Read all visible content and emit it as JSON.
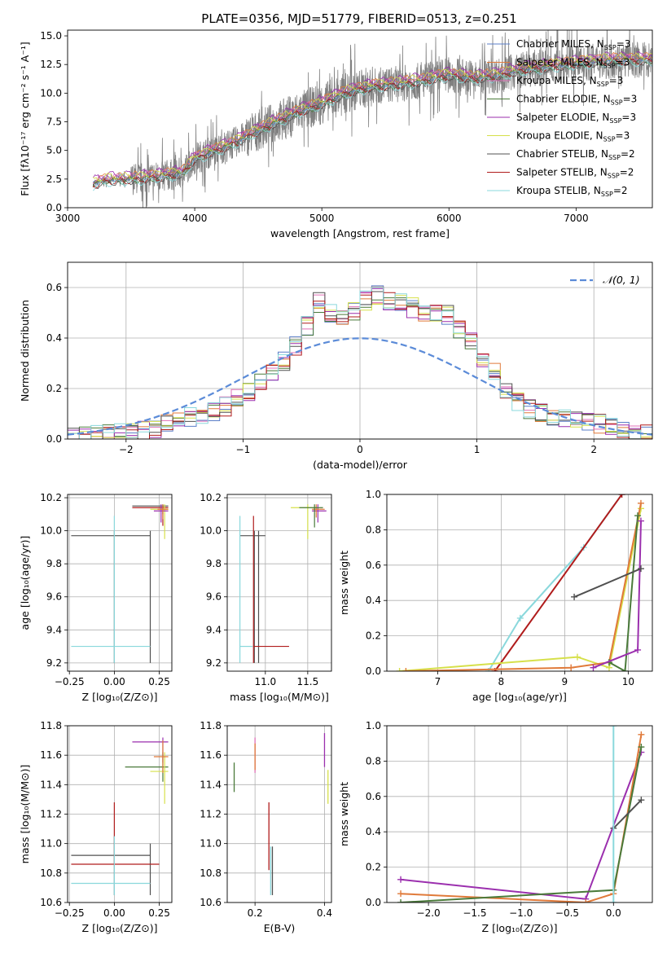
{
  "title": "PLATE=0356, MJD=51779, FIBERID=0513, z=0.251",
  "chart_data": [
    {
      "id": "spectrum",
      "type": "line",
      "xlabel": "wavelength [Angstrom, rest frame]",
      "ylabel": "Flux [fλ10⁻¹⁷ erg cm⁻² s⁻¹ A⁻¹]",
      "xlim": [
        3000,
        7600
      ],
      "ylim": [
        0,
        15.5
      ],
      "xticks": [
        3000,
        4000,
        5000,
        6000,
        7000
      ],
      "yticks": [
        0.0,
        2.5,
        5.0,
        7.5,
        10.0,
        12.5,
        15.0
      ],
      "xtick_labels": [
        "3000",
        "4000",
        "5000",
        "6000",
        "7000"
      ],
      "ytick_labels": [
        "0.0",
        "2.5",
        "5.0",
        "7.5",
        "10.0",
        "12.5",
        "15.0"
      ],
      "grid": false,
      "legend_position": "right",
      "data_color": "#808080",
      "data_wavelength_start": 3200,
      "continuum_x": [
        3200,
        3300,
        3500,
        3700,
        3900,
        4000,
        4300,
        4600,
        4800,
        5000,
        5200,
        5400,
        5600,
        5800,
        6000,
        6200,
        6400,
        6600,
        7000,
        7300
      ],
      "continuum_y": [
        2.1,
        2.4,
        2.5,
        2.7,
        3.0,
        4.3,
        5.6,
        7.3,
        8.3,
        9.1,
        10.1,
        10.6,
        10.8,
        11.1,
        11.6,
        11.3,
        11.6,
        12.1,
        12.6,
        12.9
      ],
      "series": [
        {
          "name": "Chabrier MILES, N_SSP=3",
          "label_main": "Chabrier MILES, N",
          "label_sub": "SSP",
          "label_end": "=3",
          "color": "#5b7fc8",
          "offset": 0.15
        },
        {
          "name": "Salpeter MILES, N_SSP=3",
          "label_main": "Salpeter MILES, N",
          "label_sub": "SSP",
          "label_end": "=3",
          "color": "#e07a3a",
          "offset": 0.35
        },
        {
          "name": "Kroupa MILES, N_SSP=3",
          "label_main": "Kroupa MILES, N",
          "label_sub": "SSP",
          "label_end": "=3",
          "color": "#e070b8",
          "offset": 0.25
        },
        {
          "name": "Chabrier ELODIE, N_SSP=3",
          "label_main": "Chabrier ELODIE, N",
          "label_sub": "SSP",
          "label_end": "=3",
          "color": "#4a7a3a",
          "offset": -0.1
        },
        {
          "name": "Salpeter ELODIE, N_SSP=3",
          "label_main": "Salpeter ELODIE, N",
          "label_sub": "SSP",
          "label_end": "=3",
          "color": "#9b2fae",
          "offset": 0.45
        },
        {
          "name": "Kroupa ELODIE, N_SSP=3",
          "label_main": "Kroupa ELODIE, N",
          "label_sub": "SSP",
          "label_end": "=3",
          "color": "#d6e04a",
          "offset": 0.3
        },
        {
          "name": "Chabrier STELIB, N_SSP=2",
          "label_main": "Chabrier STELIB, N",
          "label_sub": "SSP",
          "label_end": "=2",
          "color": "#505050",
          "offset": -0.2
        },
        {
          "name": "Salpeter STELIB, N_SSP=2",
          "label_main": "Salpeter STELIB, N",
          "label_sub": "SSP",
          "label_end": "=2",
          "color": "#b01c1c",
          "offset": -0.15
        },
        {
          "name": "Kroupa STELIB, N_SSP=2",
          "label_main": "Kroupa STELIB, N",
          "label_sub": "SSP",
          "label_end": "=2",
          "color": "#8ad8dc",
          "offset": -0.3
        }
      ]
    },
    {
      "id": "residuals",
      "type": "histogram",
      "xlabel": "(data-model)/error",
      "ylabel": "Normed distribution",
      "xlim": [
        -2.5,
        2.5
      ],
      "ylim": [
        0,
        0.7
      ],
      "xticks": [
        -2,
        -1,
        0,
        1,
        2
      ],
      "yticks": [
        0.0,
        0.2,
        0.4,
        0.6
      ],
      "xtick_labels": [
        "−2",
        "−1",
        "0",
        "1",
        "2"
      ],
      "ytick_labels": [
        "0.0",
        "0.2",
        "0.4",
        "0.6"
      ],
      "grid": true,
      "legend_position": "top-right",
      "reference_label": "𝒩(0, 1)",
      "reference_color": "#5b8bd8",
      "bin_edges": [
        -2.5,
        -2.4,
        -2.3,
        -2.2,
        -2.1,
        -2.0,
        -1.9,
        -1.8,
        -1.7,
        -1.6,
        -1.5,
        -1.4,
        -1.3,
        -1.2,
        -1.1,
        -1.0,
        -0.9,
        -0.8,
        -0.7,
        -0.6,
        -0.5,
        -0.4,
        -0.3,
        -0.2,
        -0.1,
        0.0,
        0.1,
        0.2,
        0.3,
        0.4,
        0.5,
        0.6,
        0.7,
        0.8,
        0.9,
        1.0,
        1.1,
        1.2,
        1.3,
        1.4,
        1.5,
        1.6,
        1.7,
        1.8,
        1.9,
        2.0,
        2.1,
        2.2,
        2.3,
        2.4,
        2.5
      ],
      "base_counts": [
        0.01,
        0.012,
        0.015,
        0.02,
        0.025,
        0.03,
        0.035,
        0.045,
        0.06,
        0.07,
        0.085,
        0.095,
        0.11,
        0.13,
        0.16,
        0.19,
        0.22,
        0.26,
        0.31,
        0.37,
        0.45,
        0.54,
        0.5,
        0.47,
        0.51,
        0.55,
        0.57,
        0.55,
        0.54,
        0.52,
        0.5,
        0.5,
        0.49,
        0.43,
        0.38,
        0.32,
        0.26,
        0.2,
        0.15,
        0.12,
        0.1,
        0.09,
        0.08,
        0.075,
        0.07,
        0.06,
        0.05,
        0.04,
        0.03,
        0.02
      ]
    },
    {
      "id": "age-vs-Z",
      "type": "scatter",
      "xlabel": "Z [log₁₀(Z/Z⊙)]",
      "ylabel": "age  [log₁₀(age/yr)]",
      "xlim": [
        -0.26,
        0.32
      ],
      "ylim": [
        9.15,
        10.22
      ],
      "xticks": [
        -0.25,
        0.0,
        0.25
      ],
      "yticks": [
        9.2,
        9.4,
        9.6,
        9.8,
        10.0,
        10.2
      ],
      "xtick_labels": [
        "−0.25",
        "0.00",
        "0.25"
      ],
      "ytick_labels": [
        "9.2",
        "9.4",
        "9.6",
        "9.8",
        "10.0",
        "10.2"
      ],
      "grid": true,
      "points": [
        {
          "series": "Chabrier STELIB",
          "x": [
            0.0,
            -0.24,
            0.2
          ],
          "y": [
            9.97,
            9.2,
            10.0
          ],
          "color": "#505050"
        },
        {
          "series": "Kroupa STELIB",
          "x": [
            0.0,
            -0.24,
            0.2
          ],
          "y": [
            9.3,
            9.2,
            10.09
          ],
          "color": "#8ad8dc"
        },
        {
          "series": "Salpeter ELODIE",
          "x": [
            0.27,
            0.1,
            0.3
          ],
          "y": [
            10.13,
            10.0,
            10.15
          ],
          "color": "#9b2fae"
        },
        {
          "series": "Kroupa ELODIE",
          "x": [
            0.28,
            0.2,
            0.3
          ],
          "y": [
            10.14,
            9.95,
            10.16
          ],
          "color": "#d6e04a"
        }
      ]
    },
    {
      "id": "age-vs-mass",
      "type": "scatter",
      "xlabel": "mass [log₁₀(M/M⊙)]",
      "ylabel": "",
      "xlim": [
        10.55,
        11.78
      ],
      "ylim": [
        9.15,
        10.22
      ],
      "xticks": [
        11.0,
        11.5
      ],
      "yticks": [
        9.2,
        9.4,
        9.6,
        9.8,
        10.0,
        10.2
      ],
      "xtick_labels": [
        "11.0",
        "11.5"
      ],
      "ytick_labels": [
        "9.2",
        "9.4",
        "9.6",
        "9.8",
        "10.0",
        "10.2"
      ],
      "grid": true
    },
    {
      "id": "massweight-vs-age",
      "type": "line",
      "xlabel": "age  [log₁₀(age/yr)]",
      "ylabel": "mass weight",
      "xlim": [
        6.2,
        10.38
      ],
      "ylim": [
        0,
        1.0
      ],
      "xticks": [
        7,
        8,
        9,
        10
      ],
      "yticks": [
        0.0,
        0.2,
        0.4,
        0.6,
        0.8,
        1.0
      ],
      "xtick_labels": [
        "7",
        "8",
        "9",
        "10"
      ],
      "ytick_labels": [
        "0.0",
        "0.2",
        "0.4",
        "0.6",
        "0.8",
        "1.0"
      ],
      "grid": true,
      "series": [
        {
          "name": "Kroupa STELIB",
          "x": [
            7.8,
            8.3,
            9.3,
            9.9
          ],
          "y": [
            0.0,
            0.3,
            0.7,
            1.0
          ],
          "color": "#8ad8dc"
        },
        {
          "name": "Salpeter STELIB",
          "x": [
            7.9,
            9.9
          ],
          "y": [
            0.0,
            1.0
          ],
          "color": "#b01c1c"
        },
        {
          "name": "Kroupa ELODIE",
          "x": [
            6.4,
            9.2,
            9.7,
            10.2
          ],
          "y": [
            0.0,
            0.08,
            0.02,
            0.92
          ],
          "color": "#d6e04a"
        },
        {
          "name": "Salpeter MILES",
          "x": [
            6.5,
            9.1,
            9.7,
            10.2
          ],
          "y": [
            0.0,
            0.02,
            0.05,
            0.95
          ],
          "color": "#e07a3a"
        },
        {
          "name": "Chabrier ELODIE",
          "x": [
            9.7,
            9.95,
            10.15
          ],
          "y": [
            0.05,
            0.0,
            0.88
          ],
          "color": "#4a7a3a"
        },
        {
          "name": "Salpeter ELODIE",
          "x": [
            9.45,
            10.15,
            10.2
          ],
          "y": [
            0.02,
            0.12,
            0.85
          ],
          "color": "#9b2fae"
        },
        {
          "name": "Chabrier STELIB",
          "x": [
            9.15,
            10.2
          ],
          "y": [
            0.42,
            0.58
          ],
          "color": "#505050"
        }
      ]
    },
    {
      "id": "mass-vs-Z",
      "type": "scatter",
      "xlabel": "Z [log₁₀(Z/Z⊙)]",
      "ylabel": "mass [log₁₀(M/M⊙)]",
      "xlim": [
        -0.26,
        0.32
      ],
      "ylim": [
        10.6,
        11.8
      ],
      "xticks": [
        -0.25,
        0.0,
        0.25
      ],
      "yticks": [
        10.6,
        10.8,
        11.0,
        11.2,
        11.4,
        11.6,
        11.8
      ],
      "xtick_labels": [
        "−0.25",
        "0.00",
        "0.25"
      ],
      "ytick_labels": [
        "10.6",
        "10.8",
        "11.0",
        "11.2",
        "11.4",
        "11.6",
        "11.8"
      ],
      "grid": true
    },
    {
      "id": "mass-vs-EBV",
      "type": "scatter",
      "xlabel": "E(B-V)",
      "ylabel": "",
      "xlim": [
        0.12,
        0.42
      ],
      "ylim": [
        10.6,
        11.8
      ],
      "xticks": [
        0.2,
        0.4
      ],
      "yticks": [
        10.6,
        10.8,
        11.0,
        11.2,
        11.4,
        11.6,
        11.8
      ],
      "xtick_labels": [
        "0.2",
        "0.4"
      ],
      "ytick_labels": [
        "10.6",
        "10.8",
        "11.0",
        "11.2",
        "11.4",
        "11.6",
        "11.8"
      ],
      "grid": true
    },
    {
      "id": "massweight-vs-Z",
      "type": "line",
      "xlabel": "Z [log₁₀(Z/Z⊙)]",
      "ylabel": "mass weight",
      "xlim": [
        -2.45,
        0.42
      ],
      "ylim": [
        0,
        1.0
      ],
      "xticks": [
        -2.0,
        -1.5,
        -1.0,
        -0.5,
        0.0
      ],
      "yticks": [
        0.0,
        0.2,
        0.4,
        0.6,
        0.8,
        1.0
      ],
      "xtick_labels": [
        "−2.0",
        "−1.5",
        "−1.0",
        "−0.5",
        "0.0"
      ],
      "ytick_labels": [
        "0.0",
        "0.2",
        "0.4",
        "0.6",
        "0.8",
        "1.0"
      ],
      "grid": true,
      "series": [
        {
          "name": "Salpeter ELODIE",
          "x": [
            -2.3,
            -0.3,
            0.3
          ],
          "y": [
            0.13,
            0.02,
            0.85
          ],
          "color": "#9b2fae"
        },
        {
          "name": "Salpeter MILES",
          "x": [
            -2.3,
            -0.3,
            0.0,
            0.3
          ],
          "y": [
            0.05,
            0.0,
            0.05,
            0.95
          ],
          "color": "#e07a3a"
        },
        {
          "name": "Chabrier ELODIE",
          "x": [
            -2.3,
            0.0,
            0.3
          ],
          "y": [
            0.0,
            0.07,
            0.88
          ],
          "color": "#4a7a3a"
        },
        {
          "name": "Chabrier STELIB",
          "x": [
            0.0,
            0.3
          ],
          "y": [
            0.42,
            0.58
          ],
          "color": "#505050"
        },
        {
          "name": "Kroupa STELIB",
          "x": [
            0.0,
            0.0
          ],
          "y": [
            0.0,
            1.0
          ],
          "color": "#8ad8dc"
        }
      ]
    }
  ]
}
